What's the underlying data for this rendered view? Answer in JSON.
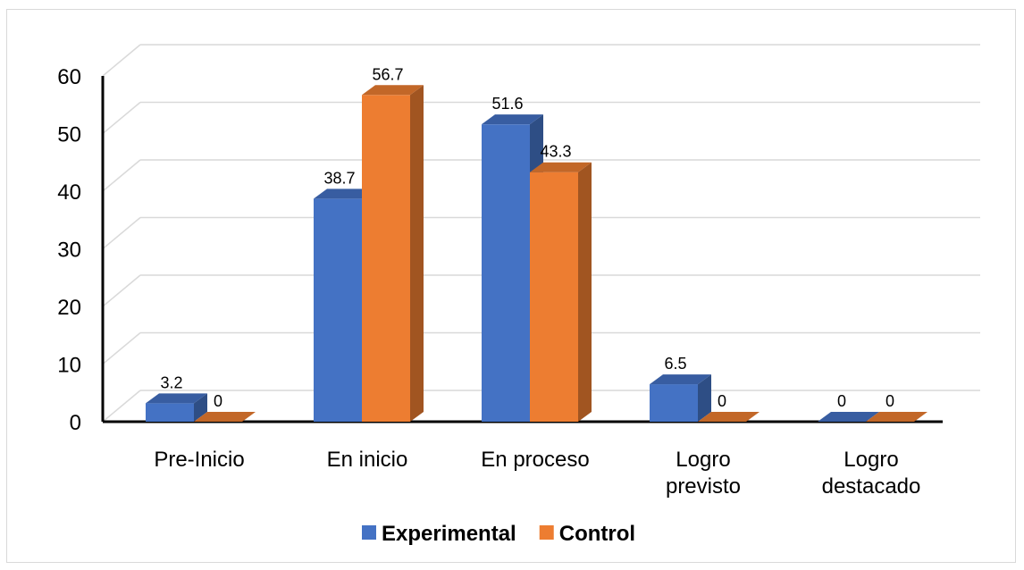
{
  "chart_data": {
    "type": "bar",
    "title": "",
    "xlabel": "",
    "ylabel": "",
    "ylim": [
      0,
      60
    ],
    "yticks": [
      0,
      10,
      20,
      30,
      40,
      50,
      60
    ],
    "grid": true,
    "style": "3d-clustered-column",
    "legend_position": "bottom",
    "categories": [
      [
        "Pre-Inicio"
      ],
      [
        "En inicio"
      ],
      [
        "En proceso"
      ],
      [
        "Logro",
        "previsto"
      ],
      [
        "Logro",
        "destacado"
      ]
    ],
    "series": [
      {
        "name": "Experimental",
        "color": "#4472C4",
        "values": [
          3.2,
          38.7,
          51.6,
          6.5,
          0
        ]
      },
      {
        "name": "Control",
        "color": "#ED7D31",
        "values": [
          0,
          56.7,
          43.3,
          0,
          0
        ]
      }
    ]
  }
}
